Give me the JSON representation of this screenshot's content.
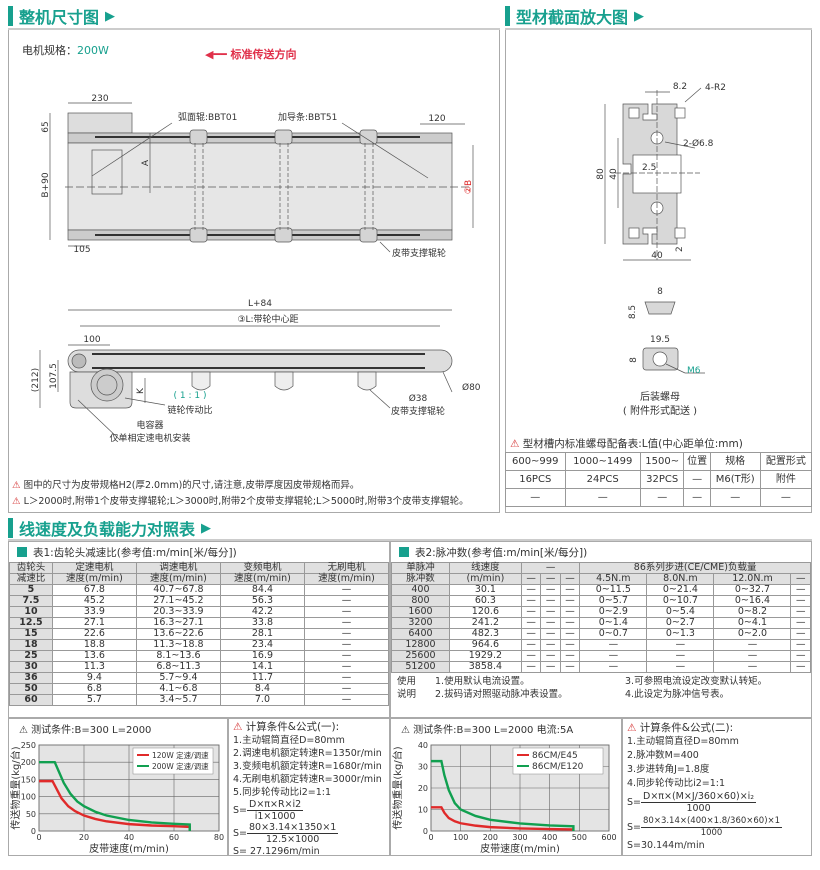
{
  "section1": {
    "title": "整机尺寸图",
    "motor_label": "电机规格：",
    "motor_value": "200W",
    "direction": "标准传送方向",
    "top_view": {
      "d230": "230",
      "d65": "65",
      "dB90": "B+90",
      "d105": "105",
      "d120": "120",
      "dA": "A",
      "dB": "②B",
      "roller": "弧面辊:BBT01",
      "guide": "加导条:BBT51",
      "support": "皮带支撑辊轮"
    },
    "side_view": {
      "dL84": "L+84",
      "dL": "③L:带轮中心距",
      "d100": "100",
      "d212": "(212)",
      "d1075": "107.5",
      "dK": "K",
      "ratio": "( 1 : 1 )",
      "ratio_label": "链轮传动比",
      "capacitor": "电容器",
      "capacitor_note": "仅单相定速电机安装",
      "d38": "Ø38",
      "support": "皮带支撑辊轮",
      "d80": "Ø80"
    },
    "notes": [
      "图中的尺寸为皮带规格H2(厚2.0mm)的尺寸,请注意,皮带厚度因皮带规格而异。",
      "L＞2000时,附带1个皮带支撑辊轮;L＞3000时,附带2个皮带支撑辊轮;L＞5000时,附带3个皮带支撑辊轮。"
    ]
  },
  "section2": {
    "title": "型材截面放大图",
    "profile": {
      "d82": "8.2",
      "r2": "4-R2",
      "hole": "2-Ø6.8",
      "d80": "80",
      "d40v": "40",
      "d25": "2.5",
      "d40h": "40",
      "d2": "2"
    },
    "nut": {
      "d8": "8",
      "d85": "8.5",
      "d195": "19.5",
      "d8b": "8",
      "m6": "M6",
      "name": "后装螺母",
      "note": "( 附件形式配送 )"
    },
    "table_title": "型材槽内标准螺母配备表:L值(中心距单位:mm)",
    "table": [
      [
        "600~999",
        "1000~1499",
        "1500~",
        "位置",
        "规格",
        "配置形式"
      ],
      [
        "16PCS",
        "24PCS",
        "32PCS",
        "—",
        "M6(T形)",
        "附件"
      ],
      [
        "—",
        "—",
        "—",
        "—",
        "—",
        "—"
      ]
    ]
  },
  "section3": {
    "title": "线速度及负载能力对照表",
    "table1": {
      "title": "表1:齿轮头减速比(参考值:m/min[米/每分])",
      "header1": [
        "齿轮头",
        "定速电机",
        "调速电机",
        "变频电机",
        "无刷电机"
      ],
      "header2": [
        "减速比",
        "速度(m/min)",
        "速度(m/min)",
        "速度(m/min)",
        "速度(m/min)"
      ],
      "rows": [
        [
          "5",
          "67.8",
          "40.7~67.8",
          "84.4",
          "—"
        ],
        [
          "7.5",
          "45.2",
          "27.1~45.2",
          "56.3",
          "—"
        ],
        [
          "10",
          "33.9",
          "20.3~33.9",
          "42.2",
          "—"
        ],
        [
          "12.5",
          "27.1",
          "16.3~27.1",
          "33.8",
          "—"
        ],
        [
          "15",
          "22.6",
          "13.6~22.6",
          "28.1",
          "—"
        ],
        [
          "18",
          "18.8",
          "11.3~18.8",
          "23.4",
          "—"
        ],
        [
          "25",
          "13.6",
          "8.1~13.6",
          "16.9",
          "—"
        ],
        [
          "30",
          "11.3",
          "6.8~11.3",
          "14.1",
          "—"
        ],
        [
          "36",
          "9.4",
          "5.7~9.4",
          "11.7",
          "—"
        ],
        [
          "50",
          "6.8",
          "4.1~6.8",
          "8.4",
          "—"
        ],
        [
          "60",
          "5.7",
          "3.4~5.7",
          "7.0",
          "—"
        ]
      ]
    },
    "table2": {
      "title": "表2:脉冲数(参考值:m/min[米/每分])",
      "header1": [
        "单脉冲",
        "线速度",
        "—",
        "86系列步进(CE/CME)负载量"
      ],
      "header2": [
        "脉冲数",
        "(m/min)",
        "—",
        "—",
        "—",
        "4.5N.m",
        "8.0N.m",
        "12.0N.m",
        "—"
      ],
      "rows": [
        [
          "400",
          "30.1",
          "—",
          "—",
          "—",
          "0~11.5",
          "0~21.4",
          "0~32.7",
          "—"
        ],
        [
          "800",
          "60.3",
          "—",
          "—",
          "—",
          "0~5.7",
          "0~10.7",
          "0~16.4",
          "—"
        ],
        [
          "1600",
          "120.6",
          "—",
          "—",
          "—",
          "0~2.9",
          "0~5.4",
          "0~8.2",
          "—"
        ],
        [
          "3200",
          "241.2",
          "—",
          "—",
          "—",
          "0~1.4",
          "0~2.7",
          "0~4.1",
          "—"
        ],
        [
          "6400",
          "482.3",
          "—",
          "—",
          "—",
          "0~0.7",
          "0~1.3",
          "0~2.0",
          "—"
        ],
        [
          "12800",
          "964.6",
          "—",
          "—",
          "—",
          "—",
          "—",
          "—",
          "—"
        ],
        [
          "25600",
          "1929.2",
          "—",
          "—",
          "—",
          "—",
          "—",
          "—",
          "—"
        ],
        [
          "51200",
          "3858.4",
          "—",
          "—",
          "—",
          "—",
          "—",
          "—",
          "—"
        ]
      ],
      "usage_label1": "使用",
      "usage_label2": "说明",
      "usage": [
        "1.使用默认电流设置。",
        "2.拔码请对照驱动脉冲表设置。",
        "3.可参照电流设定改变默认转矩。",
        "4.此设定为脉冲信号表。"
      ]
    },
    "formula1": {
      "title": "计算条件&公式(一):",
      "lines": [
        "1.主动辊筒直径D=80mm",
        "2.调速电机额定转速R=1350r/min",
        "3.变频电机额定转速R=1680r/min",
        "4.无刷电机额定转速R=3000r/min",
        "5.同步轮传动比i2=1:1"
      ],
      "f1_num": "D×π×R×i2",
      "f1_den": "i1×1000",
      "f2_num": "80×3.14×1350×1",
      "f2_den": "12.5×1000",
      "s": "S=",
      "result": "S= 27.1296m/min"
    },
    "formula2": {
      "title": "计算条件&公式(二):",
      "lines": [
        "1.主动辊筒直径D=80mm",
        "2.脉冲数M=400",
        "3.步进转角J=1.8度",
        "4.同步轮传动比i2=1:1"
      ],
      "f1_num": "D×π×(M×J/360×60)×i₂",
      "f1_den": "1000",
      "f2_num": "80×3.14×(400×1.8/360×60)×1",
      "f2_den": "1000",
      "s": "S=",
      "result": "S=30.144m/min"
    }
  },
  "colors": {
    "accent": "#17a08e",
    "red": "#e02a2a",
    "green": "#11a050",
    "warning": "#d63b3b"
  },
  "chart_data": [
    {
      "type": "line",
      "title": "测试条件:B=300   L=2000",
      "xlabel": "皮带速度(m/min)",
      "ylabel": "传送物重量(kg/台)",
      "xlim": [
        0,
        80
      ],
      "ylim": [
        0,
        250
      ],
      "xticks": [
        0,
        20,
        40,
        60,
        80
      ],
      "yticks": [
        0,
        50,
        100,
        150,
        200,
        250
      ],
      "grid": true,
      "legend": "top-right",
      "series": [
        {
          "name": "120W 定速/调速",
          "color": "#e02a2a",
          "x": [
            0,
            6,
            8,
            10,
            13,
            16,
            20,
            25,
            30,
            40,
            50,
            60,
            67,
            67
          ],
          "y": [
            145,
            145,
            120,
            95,
            72,
            58,
            45,
            35,
            28,
            20,
            16,
            14,
            12,
            0
          ]
        },
        {
          "name": "200W 定速/调速",
          "color": "#11a050",
          "x": [
            0,
            7,
            9,
            11,
            14,
            17,
            20,
            25,
            30,
            40,
            50,
            60,
            67,
            67
          ],
          "y": [
            200,
            200,
            170,
            140,
            108,
            86,
            72,
            56,
            45,
            32,
            25,
            21,
            19,
            0
          ]
        }
      ]
    },
    {
      "type": "line",
      "title": "测试条件:B=300   L=2000  电流:5A",
      "xlabel": "皮带速度(m/min)",
      "ylabel": "传送物重量(kg/台)",
      "xlim": [
        0,
        600
      ],
      "ylim": [
        0,
        40
      ],
      "xticks": [
        0,
        100,
        200,
        300,
        400,
        500,
        600
      ],
      "yticks": [
        0,
        10,
        20,
        30,
        40
      ],
      "grid": true,
      "legend": "top-right",
      "series": [
        {
          "name": "86CM/E45",
          "color": "#e02a2a",
          "x": [
            0,
            35,
            45,
            60,
            80,
            100,
            150,
            200,
            300,
            400,
            480
          ],
          "y": [
            11,
            11,
            8.5,
            6,
            4.5,
            3.6,
            2.5,
            1.8,
            1.2,
            0.9,
            0.7
          ]
        },
        {
          "name": "86CM/E120",
          "color": "#11a050",
          "x": [
            0,
            35,
            45,
            60,
            80,
            100,
            150,
            200,
            300,
            400,
            480,
            480
          ],
          "y": [
            32.5,
            32.5,
            26,
            19,
            13,
            10,
            7,
            5.2,
            3.5,
            2.6,
            2.2,
            0
          ]
        }
      ]
    }
  ]
}
